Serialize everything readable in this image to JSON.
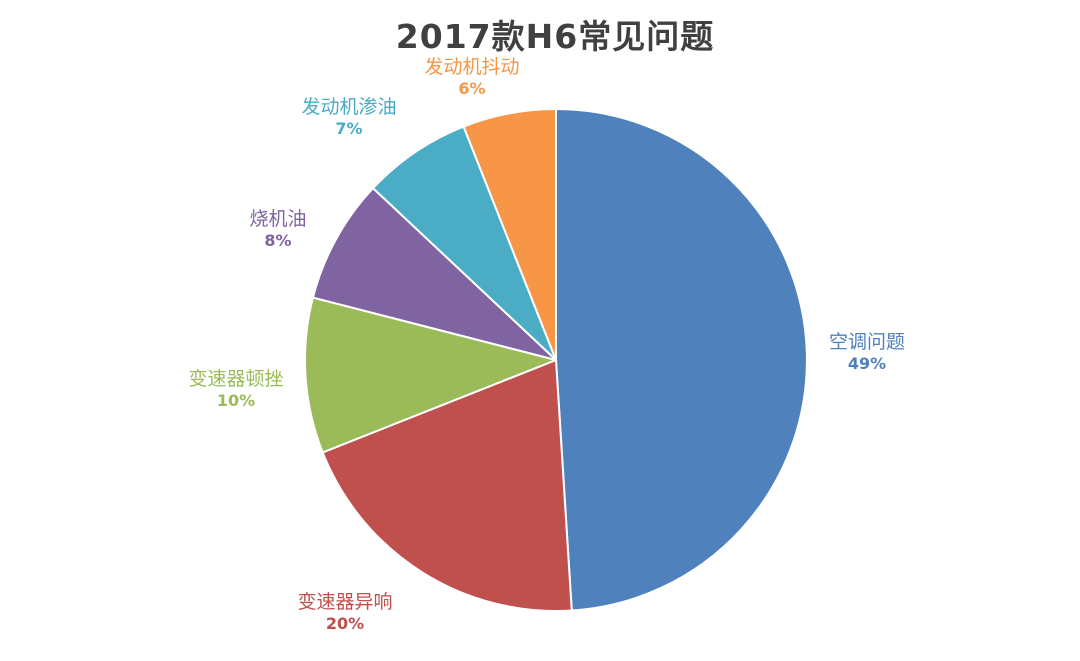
{
  "chart_data": {
    "type": "pie",
    "title": "2017款H6常见问题",
    "categories": [
      "空调问题",
      "变速器异响",
      "变速器顿挫",
      "烧机油",
      "发动机渗油",
      "发动机抖动"
    ],
    "values": [
      49,
      20,
      10,
      8,
      7,
      6
    ],
    "labels": [
      "49%",
      "20%",
      "10%",
      "8%",
      "7%",
      "6%"
    ],
    "colors": [
      "#4F81BD",
      "#C0504D",
      "#9BBB59",
      "#8064A2",
      "#4BACC6",
      "#F79646"
    ],
    "legend": "none",
    "data_labels": "outside"
  }
}
